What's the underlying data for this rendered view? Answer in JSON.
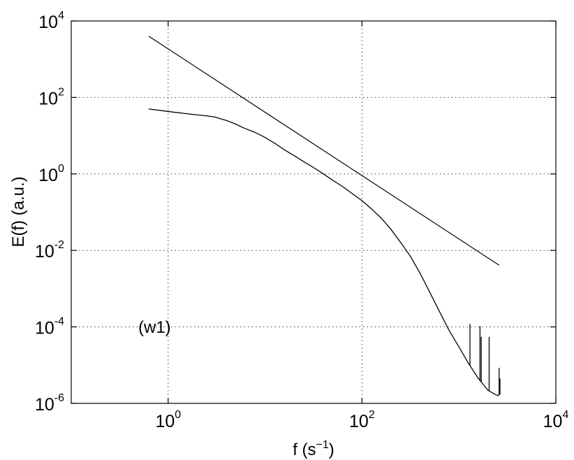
{
  "chart_data": {
    "type": "line",
    "xscale": "log",
    "yscale": "log",
    "xlim": [
      0.1,
      10000
    ],
    "ylim": [
      1e-06,
      10000
    ],
    "grid": true,
    "xlabel": "f (s⁻¹)",
    "xlabel_main": "f (s",
    "xlabel_sup": "−1",
    "xlabel_close": ")",
    "ylabel": "E(f) (a.u.)",
    "annotation": "(w1)",
    "x_ticks": [
      {
        "base": "10",
        "exp": "0",
        "value": 1
      },
      {
        "base": "10",
        "exp": "2",
        "value": 100
      },
      {
        "base": "10",
        "exp": "4",
        "value": 10000
      }
    ],
    "y_ticks": [
      {
        "base": "10",
        "exp": "4",
        "value": 10000
      },
      {
        "base": "10",
        "exp": "2",
        "value": 100
      },
      {
        "base": "10",
        "exp": "0",
        "value": 1
      },
      {
        "base": "10",
        "exp": "-2",
        "value": 0.01
      },
      {
        "base": "10",
        "exp": "-4",
        "value": 0.0001
      },
      {
        "base": "10",
        "exp": "-6",
        "value": 1e-06
      }
    ],
    "series": [
      {
        "x": [
          0.63,
          1,
          1.5,
          2,
          2.5,
          3,
          4,
          5,
          6,
          8,
          10,
          13,
          16,
          20,
          25,
          30,
          40,
          50,
          63,
          80,
          100,
          126,
          158,
          200,
          251,
          316,
          398,
          501,
          631,
          794,
          1000,
          1259,
          1585,
          1995,
          2290,
          2512,
          2630
        ],
        "y": [
          50,
          43,
          38,
          35,
          33,
          31,
          25,
          20,
          16,
          12,
          9,
          6,
          4.2,
          3,
          2.1,
          1.6,
          1.0,
          0.68,
          0.47,
          0.3,
          0.2,
          0.12,
          0.07,
          0.035,
          0.016,
          0.007,
          0.0025,
          0.0008,
          0.00025,
          8e-05,
          3e-05,
          1.1e-05,
          4.5e-06,
          2.2e-06,
          1.8e-06,
          1.6e-06,
          1.7e-06
        ]
      },
      {
        "x": [
          0.63,
          2600
        ],
        "y": [
          4000,
          0.0041
        ]
      }
    ],
    "spikes": [
      {
        "x": 1300,
        "y_top": 0.00012
      },
      {
        "x": 1650,
        "y_top": 0.000105
      },
      {
        "x": 1700,
        "y_top": 5.5e-05
      },
      {
        "x": 2050,
        "y_top": 5.5e-05
      },
      {
        "x": 2600,
        "y_top": 8.5e-06
      },
      {
        "x": 2650,
        "y_top": 4.5e-06
      }
    ]
  }
}
